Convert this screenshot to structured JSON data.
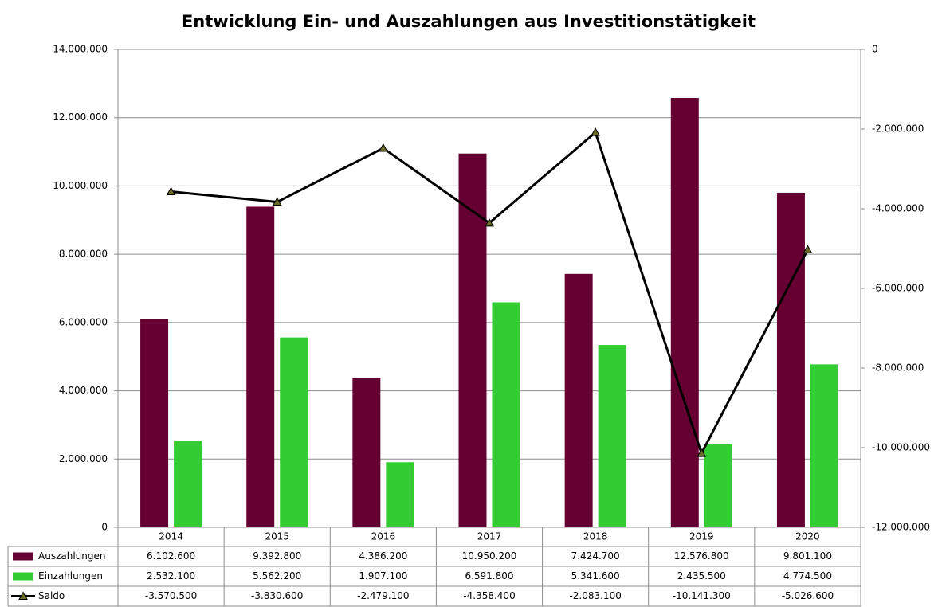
{
  "chart_data": {
    "type": "bar",
    "title": "Entwicklung Ein- und Auszahlungen aus Investitionstätigkeit",
    "categories": [
      "2014",
      "2015",
      "2016",
      "2017",
      "2018",
      "2019",
      "2020"
    ],
    "series": [
      {
        "name": "Auszahlungen",
        "color": "#660033",
        "values": [
          6102600,
          9392800,
          4386200,
          10950200,
          7424700,
          12576800,
          9801100
        ],
        "value_labels": [
          "6.102.600",
          "9.392.800",
          "4.386.200",
          "10.950.200",
          "7.424.700",
          "12.576.800",
          "9.801.100"
        ]
      },
      {
        "name": "Einzahlungen",
        "color": "#33cc33",
        "values": [
          2532100,
          5562200,
          1907100,
          6591800,
          5341600,
          2435500,
          4774500
        ],
        "value_labels": [
          "2.532.100",
          "5.562.200",
          "1.907.100",
          "6.591.800",
          "5.341.600",
          "2.435.500",
          "4.774.500"
        ]
      },
      {
        "name": "Saldo",
        "color": "#000000",
        "type": "line",
        "axis": "y2",
        "values": [
          -3570500,
          -3830600,
          -2479100,
          -4358400,
          -2083100,
          -10141300,
          -5026600
        ],
        "value_labels": [
          "-3.570.500",
          "-3.830.600",
          "-2.479.100",
          "-4.358.400",
          "-2.083.100",
          "-10.141.300",
          "-5.026.600"
        ]
      }
    ],
    "ylim": [
      0,
      14000000
    ],
    "yticks": [
      0,
      {
        "value": 2000000,
        "label": "2.000.000"
      },
      {
        "value": 4000000,
        "label": "4.000.000"
      },
      {
        "value": 6000000,
        "label": "6.000.000"
      },
      {
        "value": 8000000,
        "label": "8.000.000"
      },
      {
        "value": 10000000,
        "label": "10.000.000"
      },
      {
        "value": 12000000,
        "label": "12.000.000"
      },
      {
        "value": 14000000,
        "label": "14.000.000"
      }
    ],
    "y2lim": [
      -12000000,
      0
    ],
    "y2ticks": [
      0,
      {
        "value": -2000000,
        "label": "-2.000.000"
      },
      {
        "value": -4000000,
        "label": "-4.000.000"
      },
      {
        "value": -6000000,
        "label": "-6.000.000"
      },
      {
        "value": -8000000,
        "label": "-8.000.000"
      },
      {
        "value": -10000000,
        "label": "-10.000.000"
      },
      {
        "value": -12000000,
        "label": "-12.000.000"
      }
    ],
    "grid": true
  }
}
